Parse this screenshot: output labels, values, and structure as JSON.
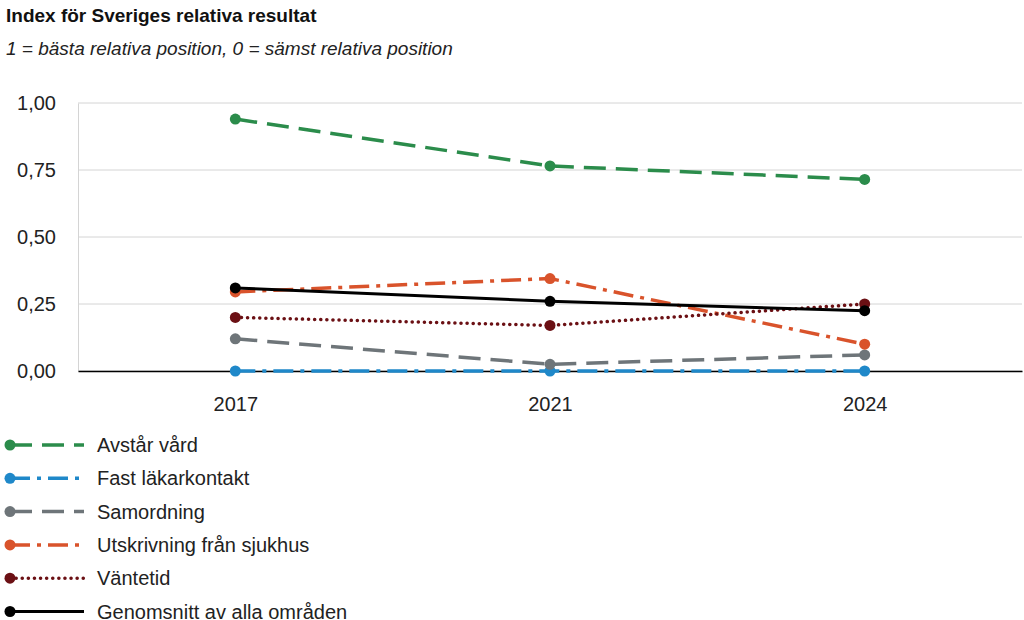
{
  "chart_data": {
    "type": "line",
    "title": "Index för Sveriges relativa resultat",
    "subtitle": "1 = bästa relativa position, 0 = sämst relativa position",
    "categories": [
      "2017",
      "2021",
      "2024"
    ],
    "ylim": [
      0,
      1
    ],
    "yticks": [
      {
        "value": 0,
        "label": "0,00"
      },
      {
        "value": 0.25,
        "label": "0,25"
      },
      {
        "value": 0.5,
        "label": "0,50"
      },
      {
        "value": 0.75,
        "label": "0,75"
      },
      {
        "value": 1,
        "label": "1,00"
      }
    ],
    "grid": true,
    "legend": "bottom",
    "data_labels": false,
    "series": [
      {
        "name": "Avstår vård",
        "color": "#2b8c4b",
        "line_style": "dashed",
        "marker": "circle",
        "values": [
          0.94,
          0.765,
          0.715
        ]
      },
      {
        "name": "Fast läkarkontakt",
        "color": "#1f88c9",
        "line_style": "dashdot",
        "marker": "circle",
        "values": [
          0,
          0,
          0
        ]
      },
      {
        "name": "Samordning",
        "color": "#6e7579",
        "line_style": "dashed",
        "marker": "circle",
        "values": [
          0.12,
          0.025,
          0.06
        ]
      },
      {
        "name": "Utskrivning från sjukhus",
        "color": "#d9532b",
        "line_style": "dashdot",
        "marker": "circle",
        "values": [
          0.295,
          0.345,
          0.1
        ]
      },
      {
        "name": "Väntetid",
        "color": "#6b1014",
        "line_style": "dotted",
        "marker": "circle",
        "values": [
          0.2,
          0.17,
          0.25
        ]
      },
      {
        "name": "Genomsnitt av alla områden",
        "color": "#000000",
        "line_style": "solid",
        "marker": "circle",
        "values": [
          0.31,
          0.26,
          0.225
        ]
      }
    ]
  }
}
